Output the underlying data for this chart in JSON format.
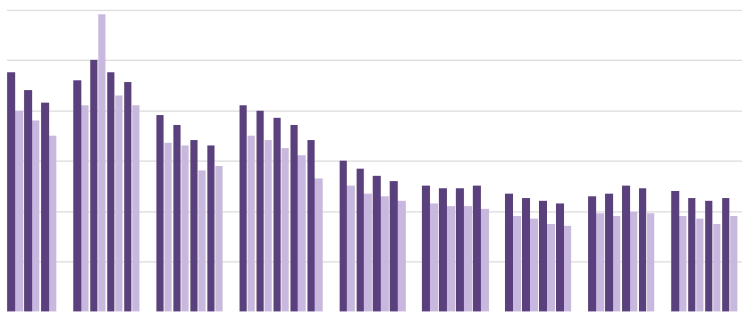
{
  "men_color": "#5b4080",
  "women_color": "#c8b8e0",
  "men_values": [
    9.5,
    8.8,
    8.3,
    9.2,
    10.0,
    9.5,
    9.1,
    7.8,
    7.4,
    6.8,
    6.6,
    8.2,
    8.0,
    7.7,
    7.4,
    6.8,
    6.0,
    5.7,
    5.4,
    5.2,
    5.0,
    4.9,
    4.9,
    5.0,
    4.7,
    4.5,
    4.4,
    4.3,
    4.6,
    4.7,
    5.0,
    4.9,
    4.8,
    4.5,
    4.4,
    4.5
  ],
  "women_values": [
    8.0,
    7.6,
    7.0,
    8.2,
    11.8,
    8.6,
    8.2,
    6.7,
    6.6,
    5.6,
    5.8,
    7.0,
    6.8,
    6.5,
    6.2,
    5.3,
    5.0,
    4.7,
    4.6,
    4.4,
    4.3,
    4.2,
    4.2,
    4.1,
    3.8,
    3.7,
    3.5,
    3.4,
    3.9,
    3.8,
    4.0,
    3.9,
    3.8,
    3.7,
    3.5,
    3.8
  ],
  "groups": [
    3,
    4,
    4,
    5,
    4,
    4,
    4,
    4,
    4
  ],
  "ylim": [
    0,
    12
  ],
  "yticks": [
    2,
    4,
    6,
    8,
    10,
    12
  ],
  "background_color": "#ffffff",
  "grid_color": "#d0d0d0"
}
